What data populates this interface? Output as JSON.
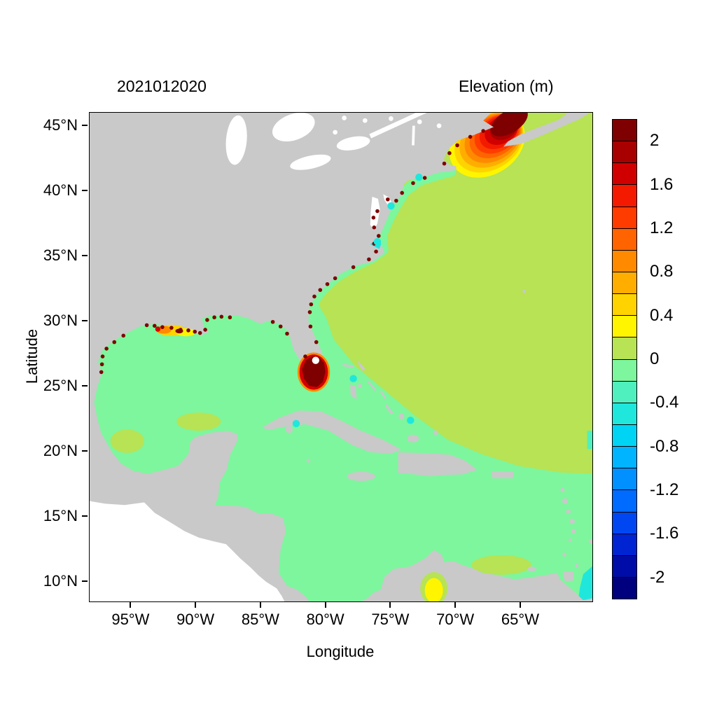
{
  "figure": {
    "date_title": "2021012020",
    "legend_title": "Elevation (m)"
  },
  "axes": {
    "x_label": "Longitude",
    "y_label": "Latitude",
    "lon_min": -98.2,
    "lon_max": -59.5,
    "lat_min": 8.5,
    "lat_max": 46,
    "x_ticks": [
      {
        "value": -95,
        "label": "95°W"
      },
      {
        "value": -90,
        "label": "90°W"
      },
      {
        "value": -85,
        "label": "85°W"
      },
      {
        "value": -80,
        "label": "80°W"
      },
      {
        "value": -75,
        "label": "75°W"
      },
      {
        "value": -70,
        "label": "70°W"
      },
      {
        "value": -65,
        "label": "65°W"
      }
    ],
    "y_ticks": [
      {
        "value": 10,
        "label": "10°N"
      },
      {
        "value": 15,
        "label": "15°N"
      },
      {
        "value": 20,
        "label": "20°N"
      },
      {
        "value": 25,
        "label": "25°N"
      },
      {
        "value": 30,
        "label": "30°N"
      },
      {
        "value": 35,
        "label": "35°N"
      },
      {
        "value": 40,
        "label": "40°N"
      },
      {
        "value": 45,
        "label": "45°N"
      }
    ]
  },
  "colors": {
    "land": "#C9C9C9",
    "lake": "#FFFFFF",
    "no_data": "#FFFFFF",
    "frame": "#000000",
    "text": "#000000",
    "background": "#FFFFFF"
  },
  "colorbar": {
    "title": "Elevation (m)",
    "min": -2.2,
    "max": 2.2,
    "step": 0.2,
    "levels": [
      {
        "from": 2.0,
        "to": 2.2,
        "color": "#7F0000"
      },
      {
        "from": 1.8,
        "to": 2.0,
        "color": "#A80000"
      },
      {
        "from": 1.6,
        "to": 1.8,
        "color": "#D10000"
      },
      {
        "from": 1.4,
        "to": 1.6,
        "color": "#F41A00"
      },
      {
        "from": 1.2,
        "to": 1.4,
        "color": "#FF3C00"
      },
      {
        "from": 1.0,
        "to": 1.2,
        "color": "#FF6400"
      },
      {
        "from": 0.8,
        "to": 1.0,
        "color": "#FF8A00"
      },
      {
        "from": 0.6,
        "to": 0.8,
        "color": "#FFAE00"
      },
      {
        "from": 0.4,
        "to": 0.6,
        "color": "#FFD300"
      },
      {
        "from": 0.2,
        "to": 0.4,
        "color": "#FFF500"
      },
      {
        "from": 0.0,
        "to": 0.2,
        "color": "#B7E354"
      },
      {
        "from": -0.2,
        "to": 0.0,
        "color": "#7DF69D"
      },
      {
        "from": -0.4,
        "to": -0.2,
        "color": "#4FF0BE"
      },
      {
        "from": -0.6,
        "to": -0.4,
        "color": "#1FE7DC"
      },
      {
        "from": -0.8,
        "to": -0.6,
        "color": "#00D4F5"
      },
      {
        "from": -1.0,
        "to": -0.8,
        "color": "#00B4FF"
      },
      {
        "from": -1.2,
        "to": -1.0,
        "color": "#0090FF"
      },
      {
        "from": -1.4,
        "to": -1.2,
        "color": "#006BFF"
      },
      {
        "from": -1.6,
        "to": -1.4,
        "color": "#0047F2"
      },
      {
        "from": -1.8,
        "to": -1.6,
        "color": "#0024D2"
      },
      {
        "from": -2.0,
        "to": -1.8,
        "color": "#000CA8"
      },
      {
        "from": -2.2,
        "to": -2.0,
        "color": "#00007F"
      }
    ],
    "tick_labels": [
      {
        "value": 2,
        "label": "2"
      },
      {
        "value": 1.6,
        "label": "1.6"
      },
      {
        "value": 1.2,
        "label": "1.2"
      },
      {
        "value": 0.8,
        "label": "0.8"
      },
      {
        "value": 0.4,
        "label": "0.4"
      },
      {
        "value": 0,
        "label": "0"
      },
      {
        "value": -0.4,
        "label": "-0.4"
      },
      {
        "value": -0.8,
        "label": "-0.8"
      },
      {
        "value": -1.2,
        "label": "-1.2"
      },
      {
        "value": -1.6,
        "label": "-1.6"
      },
      {
        "value": -2,
        "label": "-2"
      }
    ]
  },
  "chart_data": {
    "type": "heatmap",
    "subtype": "filled-contour-geographic-map",
    "title": "Elevation (m)",
    "timestamp": "2021012020",
    "xlabel": "Longitude",
    "ylabel": "Latitude",
    "lon_range": [
      -98.2,
      -59.5
    ],
    "lat_range": [
      8.5,
      46
    ],
    "x_tick_labels": [
      "95°W",
      "90°W",
      "85°W",
      "80°W",
      "75°W",
      "70°W",
      "65°W"
    ],
    "y_tick_labels": [
      "10°N",
      "15°N",
      "20°N",
      "25°N",
      "30°N",
      "35°N",
      "40°N",
      "45°N"
    ],
    "colorbar_range": [
      -2.2,
      2.2
    ],
    "colorbar_labels": [
      2,
      1.6,
      1.2,
      0.8,
      0.4,
      0,
      -0.4,
      -0.8,
      -1.2,
      -1.6,
      -2
    ],
    "regions": [
      {
        "area": "Open Atlantic Ocean",
        "elevation_m": "0 to 0.2"
      },
      {
        "area": "Gulf of Mexico",
        "elevation_m": "-0.2 to 0"
      },
      {
        "area": "Caribbean Sea",
        "elevation_m": "-0.2 to 0"
      },
      {
        "area": "Gulf of Maine / Bay of Fundy",
        "elevation_m": "0.4 rising to > 2 (dark red core at top)"
      },
      {
        "area": "South Florida / Everglades",
        "elevation_m": "> 2 (dark red blob)"
      },
      {
        "area": "Louisiana coastal marshes",
        "elevation_m": "0.4 to > 2 scattered patches"
      },
      {
        "area": "US East Coast estuaries",
        "elevation_m": "> 2 speckles along shoreline"
      },
      {
        "area": "Lake Maracaibo area",
        "elevation_m": "0.2 to 0.4 (yellow patch)"
      },
      {
        "area": "SE corner near right edge",
        "elevation_m": "-0.6 to -0.4 (turquoise)"
      },
      {
        "area": "Land",
        "elevation_m": "masked (gray)"
      },
      {
        "area": "Pacific side (lower-left)",
        "elevation_m": "no data (white)"
      }
    ],
    "overlays": {
      "dark_red_speckles": [
        [
          -97.3,
          26.1
        ],
        [
          -97.25,
          26.7
        ],
        [
          -97.2,
          27.3
        ],
        [
          -96.9,
          27.9
        ],
        [
          -96.3,
          28.4
        ],
        [
          -95.6,
          28.9
        ],
        [
          -93.8,
          29.7
        ],
        [
          -93.2,
          29.65
        ],
        [
          -92.6,
          29.55
        ],
        [
          -91.9,
          29.5
        ],
        [
          -91.2,
          29.35
        ],
        [
          -90.6,
          29.3
        ],
        [
          -90.1,
          29.2
        ],
        [
          -89.7,
          29.1
        ],
        [
          -89.3,
          29.35
        ],
        [
          -89.15,
          30.1
        ],
        [
          -88.6,
          30.3
        ],
        [
          -88.05,
          30.35
        ],
        [
          -87.4,
          30.3
        ],
        [
          -84.1,
          29.95
        ],
        [
          -83.5,
          29.6
        ],
        [
          -83.0,
          29.05
        ],
        [
          -81.25,
          30.7
        ],
        [
          -81.15,
          31.3
        ],
        [
          -80.9,
          31.9
        ],
        [
          -80.45,
          32.4
        ],
        [
          -79.9,
          32.85
        ],
        [
          -79.3,
          33.3
        ],
        [
          -77.9,
          34.15
        ],
        [
          -76.7,
          34.75
        ],
        [
          -76.15,
          35.35
        ],
        [
          -76.3,
          35.95
        ],
        [
          -75.95,
          36.55
        ],
        [
          -76.3,
          37.2
        ],
        [
          -76.35,
          37.95
        ],
        [
          -76.05,
          38.45
        ],
        [
          -75.25,
          39.35
        ],
        [
          -74.6,
          39.25
        ],
        [
          -74.15,
          39.85
        ],
        [
          -73.3,
          40.6
        ],
        [
          -72.4,
          41.0
        ],
        [
          -70.9,
          42.1
        ],
        [
          -70.5,
          42.9
        ],
        [
          -69.9,
          43.5
        ],
        [
          -68.9,
          44.15
        ],
        [
          -67.9,
          44.6
        ],
        [
          -81.2,
          29.6
        ],
        [
          -80.75,
          28.4
        ],
        [
          -81.6,
          27.3
        ]
      ],
      "cyan_patches": [
        [
          -75.0,
          38.85
        ],
        [
          -76.05,
          36.1
        ],
        [
          -72.85,
          41.05
        ],
        [
          -77.9,
          25.6
        ],
        [
          -73.5,
          22.4
        ],
        [
          -82.3,
          22.15
        ]
      ],
      "canada_lake_dots": [
        [
          -77.0,
          45.4
        ],
        [
          -75.0,
          45.55
        ],
        [
          -72.8,
          45.3
        ],
        [
          -79.3,
          44.5
        ],
        [
          -71.3,
          45.0
        ],
        [
          -78.6,
          45.6
        ]
      ]
    }
  }
}
